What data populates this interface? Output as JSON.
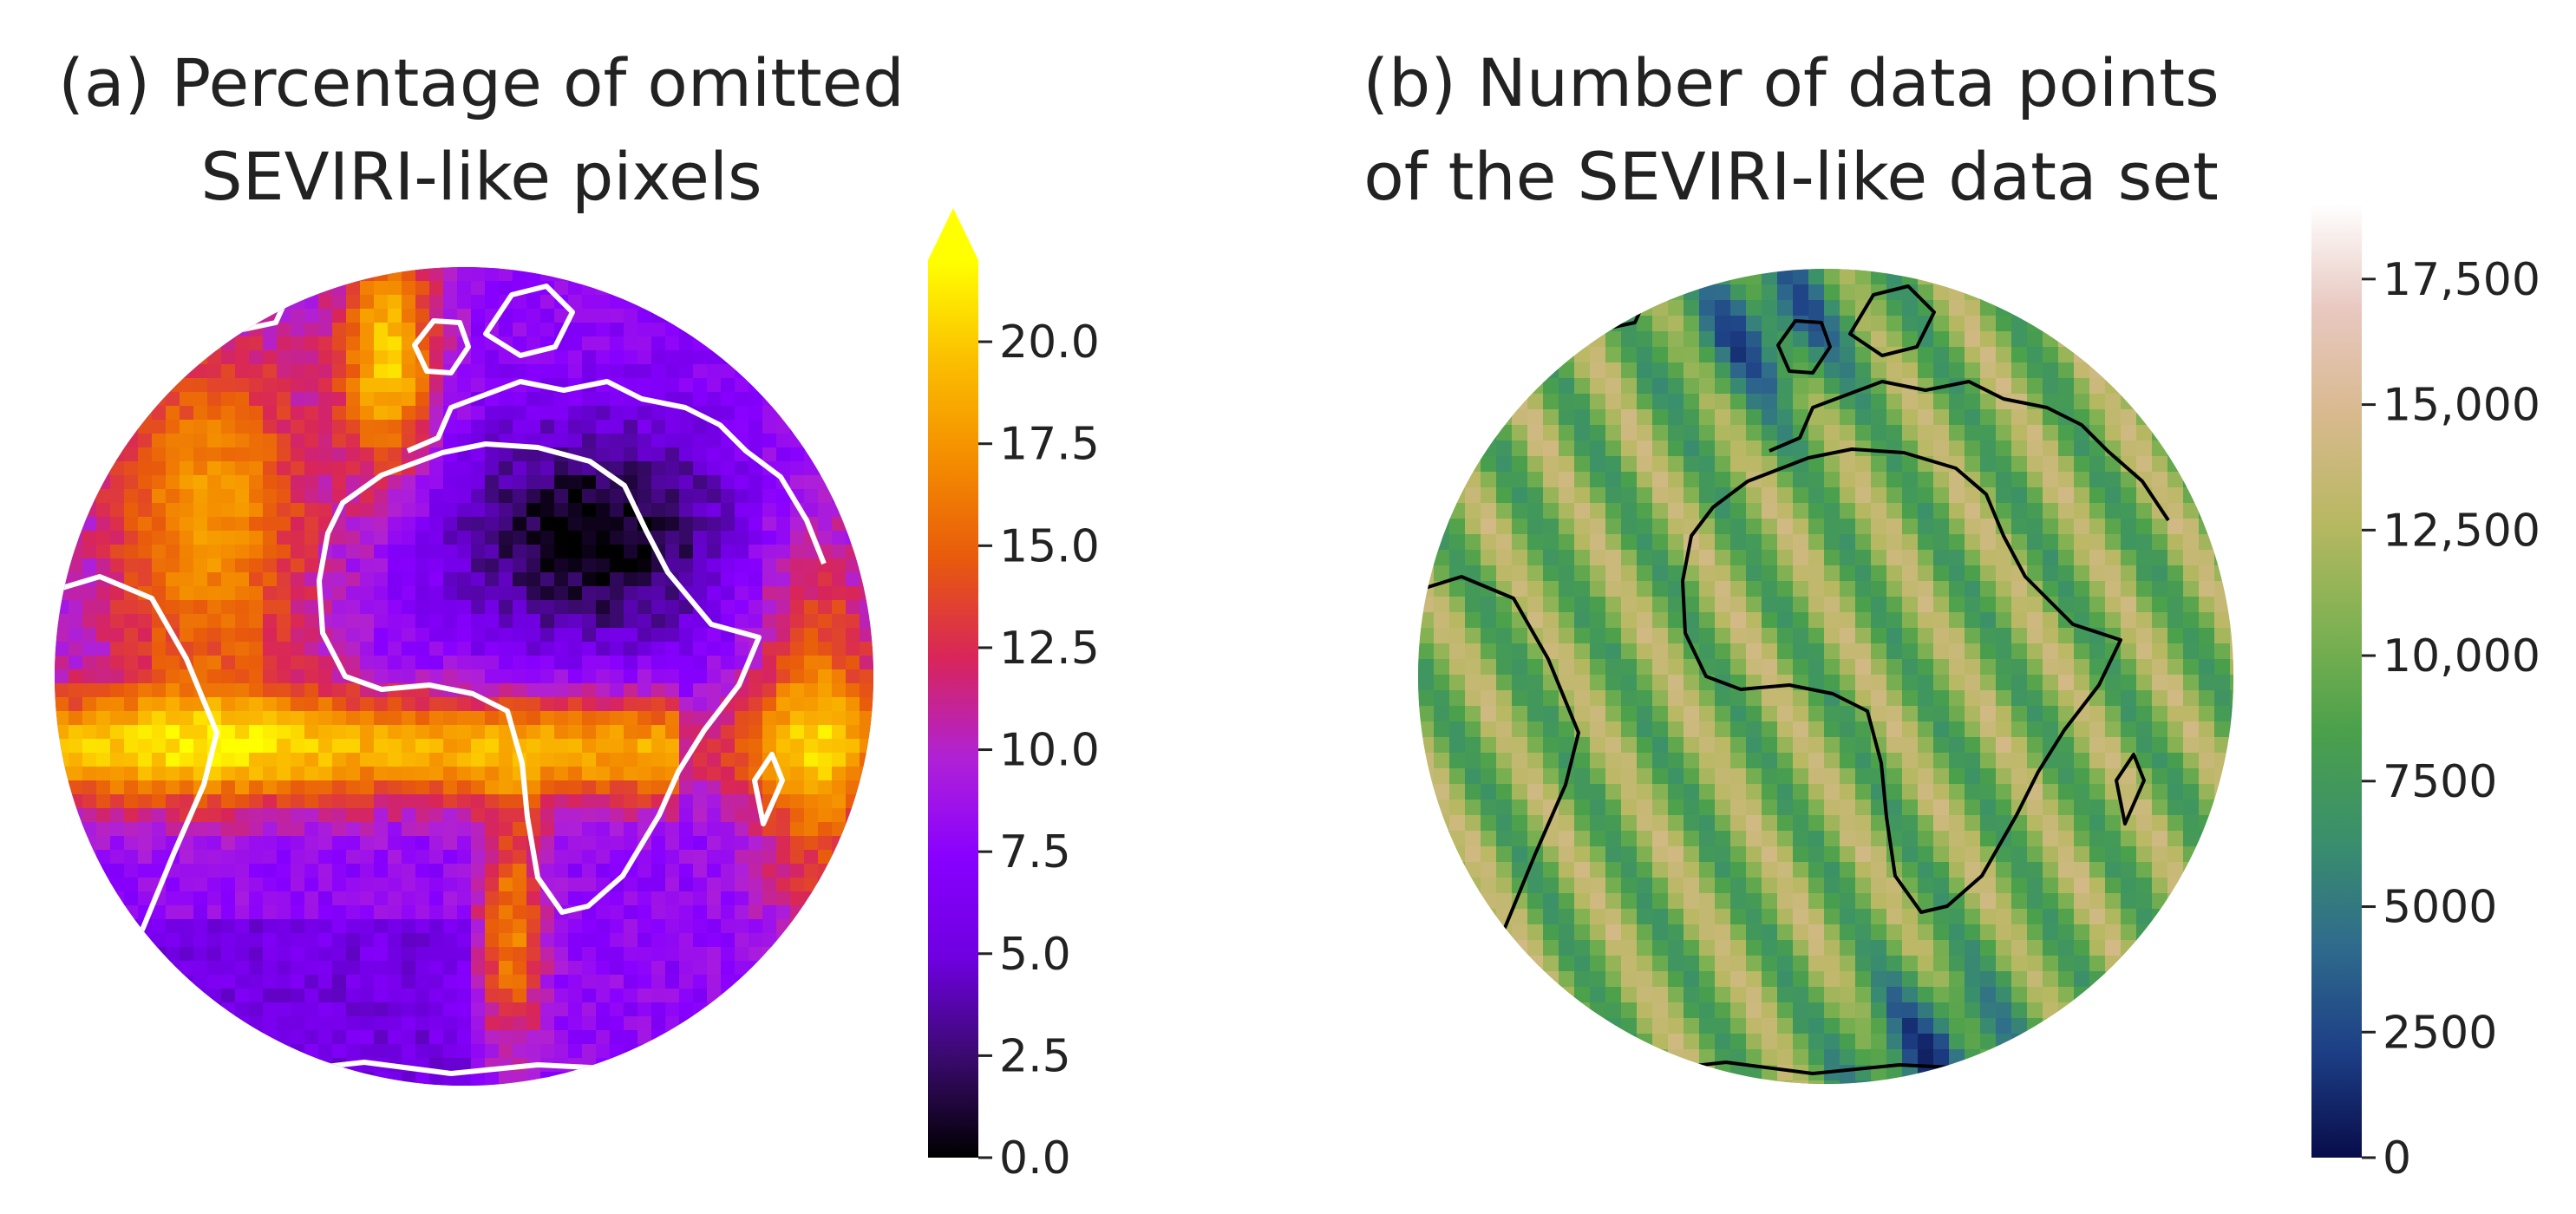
{
  "panel_a": {
    "title_line1": "(a) Percentage of omitted",
    "title_line2": "SEVIRI-like pixels",
    "coastline_color": "#ffffff",
    "colormap": [
      "#000000",
      "#3a0a6e",
      "#6f00e0",
      "#8800ff",
      "#b021d6",
      "#d8255a",
      "#e85a0c",
      "#f48d00",
      "#fbbf00",
      "#ffff00"
    ],
    "colorbar": {
      "min": 0.0,
      "max": 22.0,
      "extend": "max",
      "tick_values": [
        0.0,
        2.5,
        5.0,
        7.5,
        10.0,
        12.5,
        15.0,
        17.5,
        20.0
      ],
      "tick_labels": [
        "0.0",
        "2.5",
        "5.0",
        "7.5",
        "10.0",
        "12.5",
        "15.0",
        "17.5",
        "20.0"
      ]
    }
  },
  "panel_b": {
    "title_line1": "(b) Number of data points",
    "title_line2": "of the SEVIRI-like data set",
    "coastline_color": "#000000",
    "colormap": [
      "#080c4a",
      "#1d3f86",
      "#2f6b8c",
      "#3a8f6c",
      "#4aa04b",
      "#7fb152",
      "#b8b862",
      "#d8b98e",
      "#e8c8c0",
      "#ffffff"
    ],
    "colorbar": {
      "min": 0,
      "max": 19000,
      "extend": "neither",
      "tick_values": [
        0,
        2500,
        5000,
        7500,
        10000,
        12500,
        15000,
        17500
      ],
      "tick_labels": [
        "0",
        "2500",
        "5000",
        "7500",
        "10,000",
        "12,500",
        "15,000",
        "17,500"
      ]
    }
  }
}
